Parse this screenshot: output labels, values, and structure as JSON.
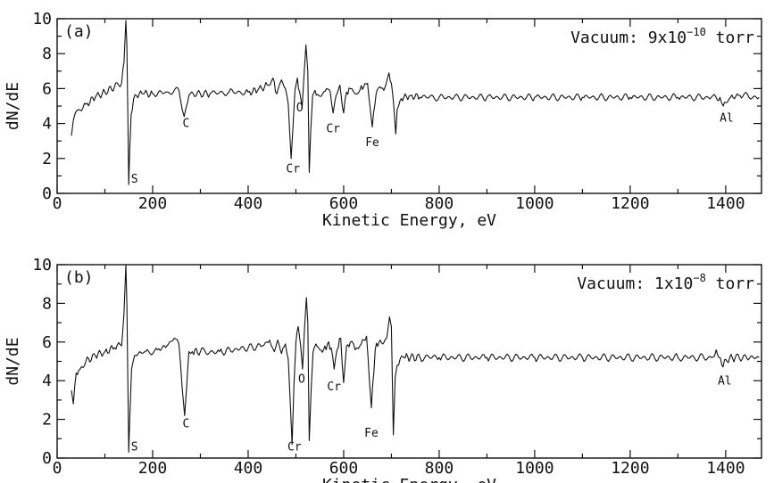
{
  "chart_data": [
    {
      "type": "line",
      "panel_label": "(a)",
      "vacuum": {
        "prefix": "Vacuum:  9x10",
        "exponent": "−10",
        "suffix": " torr"
      },
      "xlabel": "Kinetic  Energy,  eV",
      "ylabel": "dN/dE",
      "xlim": [
        0,
        1475
      ],
      "ylim": [
        0,
        10
      ],
      "xticks": [
        0,
        200,
        400,
        600,
        800,
        1000,
        1200,
        1400
      ],
      "yticks": [
        0,
        2,
        4,
        6,
        8,
        10
      ],
      "grid": false,
      "series": [
        {
          "x": [
            30,
            34,
            38,
            45,
            60,
            80,
            100,
            120,
            135,
            140,
            144,
            146,
            148,
            150,
            152,
            155,
            160,
            166,
            172,
            180,
            200,
            230,
            255,
            262,
            266,
            270,
            276,
            285,
            320,
            360,
            400,
            420,
            440,
            452,
            460,
            470,
            478,
            484,
            487,
            490,
            494,
            498,
            503,
            508,
            513,
            517,
            521,
            525,
            528,
            531,
            535,
            540,
            548,
            556,
            564,
            572,
            578,
            584,
            592,
            600,
            606,
            614,
            624,
            634,
            642,
            650,
            655,
            660,
            668,
            676,
            684,
            690,
            695,
            700,
            705,
            709,
            712,
            718,
            726,
            740,
            760,
            800,
            900,
            1000,
            1100,
            1200,
            1300,
            1370,
            1388,
            1395,
            1400,
            1410,
            1430,
            1470
          ],
          "y": [
            3.3,
            4.2,
            4.6,
            4.8,
            5.1,
            5.5,
            5.8,
            6.1,
            6.3,
            7.5,
            9.9,
            8.5,
            4.5,
            0.5,
            2.5,
            4.5,
            5.4,
            5.6,
            5.7,
            5.7,
            5.7,
            5.8,
            5.9,
            4.8,
            4.4,
            4.9,
            5.6,
            5.7,
            5.7,
            5.8,
            5.8,
            5.9,
            6.2,
            6.6,
            5.7,
            6.5,
            6.0,
            5.1,
            3.5,
            2.0,
            3.8,
            5.9,
            6.6,
            5.8,
            4.9,
            6.8,
            8.5,
            7.0,
            1.2,
            3.5,
            5.6,
            5.9,
            5.6,
            5.7,
            6.0,
            5.8,
            4.6,
            5.6,
            6.2,
            4.6,
            5.8,
            6.0,
            5.7,
            5.9,
            6.1,
            6.3,
            5.0,
            3.8,
            5.7,
            6.1,
            5.9,
            6.4,
            6.9,
            6.3,
            5.0,
            3.4,
            4.8,
            5.3,
            5.5,
            5.6,
            5.5,
            5.5,
            5.5,
            5.5,
            5.5,
            5.5,
            5.5,
            5.5,
            5.5,
            5.0,
            5.2,
            5.5,
            5.6,
            5.5
          ]
        }
      ],
      "annotations": [
        {
          "text": "S",
          "x": 162,
          "y": 0.6
        },
        {
          "text": "C",
          "x": 270,
          "y": 3.8
        },
        {
          "text": "O",
          "x": 508,
          "y": 4.7
        },
        {
          "text": "Cr",
          "x": 494,
          "y": 1.2
        },
        {
          "text": "Cr",
          "x": 578,
          "y": 3.5
        },
        {
          "text": "Fe",
          "x": 660,
          "y": 2.7
        },
        {
          "text": "Al",
          "x": 1402,
          "y": 4.1
        }
      ]
    },
    {
      "type": "line",
      "panel_label": "(b)",
      "vacuum": {
        "prefix": "Vacuum:  1x10",
        "exponent": "−8",
        "suffix": " torr"
      },
      "xlabel": "Kinetic  Energy,  eV",
      "ylabel": "dN/dE",
      "xlim": [
        0,
        1475
      ],
      "ylim": [
        0,
        10
      ],
      "xticks": [
        0,
        200,
        400,
        600,
        800,
        1000,
        1200,
        1400
      ],
      "yticks": [
        0,
        2,
        4,
        6,
        8,
        10
      ],
      "grid": false,
      "series": [
        {
          "x": [
            30,
            34,
            40,
            48,
            60,
            80,
            100,
            120,
            135,
            140,
            144,
            146,
            148,
            150,
            152,
            156,
            162,
            170,
            185,
            210,
            230,
            245,
            255,
            262,
            267,
            271,
            276,
            283,
            300,
            340,
            400,
            430,
            445,
            455,
            462,
            470,
            478,
            484,
            488,
            492,
            496,
            500,
            505,
            510,
            514,
            518,
            522,
            525,
            528,
            532,
            536,
            542,
            550,
            558,
            566,
            574,
            580,
            586,
            594,
            600,
            606,
            614,
            624,
            634,
            642,
            648,
            654,
            658,
            666,
            674,
            682,
            690,
            696,
            700,
            704,
            708,
            712,
            718,
            726,
            740,
            760,
            800,
            900,
            1000,
            1100,
            1200,
            1300,
            1370,
            1380,
            1386,
            1392,
            1400,
            1420,
            1470
          ],
          "y": [
            3.5,
            2.8,
            4.4,
            4.6,
            5.0,
            5.3,
            5.5,
            5.7,
            5.8,
            7.5,
            10.0,
            8.0,
            4.0,
            0.3,
            2.0,
            4.6,
            5.3,
            5.4,
            5.5,
            5.6,
            5.8,
            6.2,
            5.9,
            3.6,
            2.2,
            3.6,
            5.5,
            5.5,
            5.5,
            5.5,
            5.7,
            5.8,
            6.1,
            5.5,
            6.1,
            5.4,
            5.9,
            5.1,
            3.0,
            0.7,
            3.8,
            6.0,
            6.8,
            5.8,
            4.6,
            6.7,
            8.3,
            7.0,
            0.9,
            3.6,
            5.5,
            5.9,
            5.6,
            5.6,
            5.9,
            5.7,
            4.6,
            5.6,
            6.2,
            3.9,
            5.8,
            6.0,
            5.6,
            5.8,
            6.1,
            6.3,
            4.0,
            2.6,
            5.6,
            6.0,
            5.9,
            6.2,
            7.3,
            6.8,
            1.2,
            4.2,
            4.8,
            5.1,
            5.2,
            5.2,
            5.2,
            5.2,
            5.2,
            5.2,
            5.2,
            5.2,
            5.2,
            5.2,
            5.6,
            5.2,
            4.8,
            5.1,
            5.2,
            5.2
          ]
        }
      ],
      "annotations": [
        {
          "text": "S",
          "x": 162,
          "y": 0.4
        },
        {
          "text": "C",
          "x": 270,
          "y": 1.6
        },
        {
          "text": "O",
          "x": 512,
          "y": 3.9
        },
        {
          "text": "Cr",
          "x": 497,
          "y": 0.4
        },
        {
          "text": "Cr",
          "x": 580,
          "y": 3.5
        },
        {
          "text": "Fe",
          "x": 658,
          "y": 1.1
        },
        {
          "text": "Al",
          "x": 1398,
          "y": 3.8
        }
      ]
    }
  ]
}
